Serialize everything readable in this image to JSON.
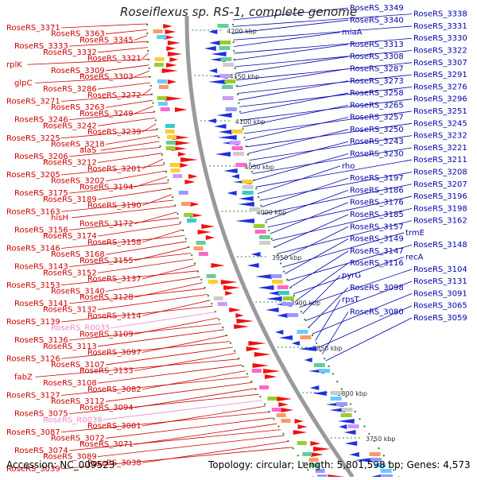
{
  "title": "Roseiflexus sp. RS-1, complete genome",
  "footer": {
    "accession": "Accession: NC_009523",
    "summary": "Topology: circular; Length: 5,801,598 bp; Genes: 4,573"
  },
  "colors": {
    "left_label": "#cc0000",
    "right_label": "#0000aa",
    "rna_label": "#ee88cc",
    "forward_strand": "#ee1111",
    "reverse_strand": "#1f2fe0",
    "backbone": "#9a9a9a",
    "tick": "#228822"
  },
  "scale_ticks": [
    "4200 kbp",
    "4150 kbp",
    "4100 kbp",
    "4050 kbp",
    "4000 kbp",
    "3950 kbp",
    "3900 kbp",
    "3850 kbp",
    "3800 kbp",
    "3750 kbp"
  ],
  "left_labels": [
    {
      "text": "RoseRS_3371",
      "kind": "gene"
    },
    {
      "text": "RoseRS_3363",
      "kind": "gene"
    },
    {
      "text": "RoseRS_3345",
      "kind": "gene"
    },
    {
      "text": "RoseRS_3333",
      "kind": "gene"
    },
    {
      "text": "RoseRS_3332",
      "kind": "gene"
    },
    {
      "text": "RoseRS_3321",
      "kind": "gene"
    },
    {
      "text": "rplK",
      "kind": "gene"
    },
    {
      "text": "RoseRS_3309",
      "kind": "gene"
    },
    {
      "text": "RoseRS_3303",
      "kind": "gene"
    },
    {
      "text": "glpC",
      "kind": "gene"
    },
    {
      "text": "RoseRS_3286",
      "kind": "gene"
    },
    {
      "text": "RoseRS_3272",
      "kind": "gene"
    },
    {
      "text": "RoseRS_3271",
      "kind": "gene"
    },
    {
      "text": "RoseRS_3263",
      "kind": "gene"
    },
    {
      "text": "RoseRS_3249",
      "kind": "gene"
    },
    {
      "text": "RoseRS_3246",
      "kind": "gene"
    },
    {
      "text": "RoseRS_3242",
      "kind": "gene"
    },
    {
      "text": "RoseRS_3239",
      "kind": "gene"
    },
    {
      "text": "RoseRS_3225",
      "kind": "gene"
    },
    {
      "text": "RoseRS_3218",
      "kind": "gene"
    },
    {
      "text": "alaS",
      "kind": "gene"
    },
    {
      "text": "RoseRS_3206",
      "kind": "gene"
    },
    {
      "text": "RoseRS_3212",
      "kind": "gene"
    },
    {
      "text": "RoseRS_3201",
      "kind": "gene"
    },
    {
      "text": "RoseRS_3205",
      "kind": "gene"
    },
    {
      "text": "RoseRS_3202",
      "kind": "gene"
    },
    {
      "text": "RoseRS_3194",
      "kind": "gene"
    },
    {
      "text": "RoseRS_3175",
      "kind": "gene"
    },
    {
      "text": "RoseRS_3189",
      "kind": "gene"
    },
    {
      "text": "RoseRS_3190",
      "kind": "gene"
    },
    {
      "text": "RoseRS_3163",
      "kind": "gene"
    },
    {
      "text": "hisH",
      "kind": "gene"
    },
    {
      "text": "RoseRS_3172",
      "kind": "gene"
    },
    {
      "text": "RoseRS_3156",
      "kind": "gene"
    },
    {
      "text": "RoseRS_3174",
      "kind": "gene"
    },
    {
      "text": "RoseRS_3158",
      "kind": "gene"
    },
    {
      "text": "RoseRS_3146",
      "kind": "gene"
    },
    {
      "text": "RoseRS_3168",
      "kind": "gene"
    },
    {
      "text": "RoseRS_3155",
      "kind": "gene"
    },
    {
      "text": "RoseRS_3143",
      "kind": "gene"
    },
    {
      "text": "RoseRS_3152",
      "kind": "gene"
    },
    {
      "text": "RoseRS_3137",
      "kind": "gene"
    },
    {
      "text": "RoseRS_3153",
      "kind": "gene"
    },
    {
      "text": "RoseRS_3140",
      "kind": "gene"
    },
    {
      "text": "RoseRS_3128",
      "kind": "gene"
    },
    {
      "text": "RoseRS_3141",
      "kind": "gene"
    },
    {
      "text": "RoseRS_3132",
      "kind": "gene"
    },
    {
      "text": "RoseRS_3114",
      "kind": "gene"
    },
    {
      "text": "RoseRS_3139",
      "kind": "gene"
    },
    {
      "text": "RoseRS_R0035",
      "kind": "rna"
    },
    {
      "text": "RoseRS_3109",
      "kind": "gene"
    },
    {
      "text": "RoseRS_3136",
      "kind": "gene"
    },
    {
      "text": "RoseRS_3113",
      "kind": "gene"
    },
    {
      "text": "RoseRS_3097",
      "kind": "gene"
    },
    {
      "text": "RoseRS_3126",
      "kind": "gene"
    },
    {
      "text": "RoseRS_3107",
      "kind": "gene"
    },
    {
      "text": "RoseRS_3133",
      "kind": "gene"
    },
    {
      "text": "fabZ",
      "kind": "gene"
    },
    {
      "text": "RoseRS_3108",
      "kind": "gene"
    },
    {
      "text": "RoseRS_3082",
      "kind": "gene"
    },
    {
      "text": "RoseRS_3127",
      "kind": "gene"
    },
    {
      "text": "RoseRS_3112",
      "kind": "gene"
    },
    {
      "text": "RoseRS_3094",
      "kind": "gene"
    },
    {
      "text": "RoseRS_3075",
      "kind": "gene"
    },
    {
      "text": "RoseRS_R0038",
      "kind": "rna"
    },
    {
      "text": "RoseRS_3081",
      "kind": "gene"
    },
    {
      "text": "RoseRS_3087",
      "kind": "gene"
    },
    {
      "text": "RoseRS_3072",
      "kind": "gene"
    },
    {
      "text": "RoseRS_3071",
      "kind": "gene"
    },
    {
      "text": "RoseRS_3074",
      "kind": "gene"
    },
    {
      "text": "RoseRS_3089",
      "kind": "gene"
    },
    {
      "text": "RoseRS_3038",
      "kind": "gene"
    },
    {
      "text": "RoseRS_3039",
      "kind": "gene"
    }
  ],
  "right_labels": [
    {
      "text": "RoseRS_3349"
    },
    {
      "text": "RoseRS_3338"
    },
    {
      "text": "RoseRS_3340"
    },
    {
      "text": "RoseRS_3331"
    },
    {
      "text": "miaA"
    },
    {
      "text": "RoseRS_3330"
    },
    {
      "text": "RoseRS_3313"
    },
    {
      "text": "RoseRS_3322"
    },
    {
      "text": "RoseRS_3308"
    },
    {
      "text": "RoseRS_3307"
    },
    {
      "text": "RoseRS_3287"
    },
    {
      "text": "RoseRS_3291"
    },
    {
      "text": "RoseRS_3273"
    },
    {
      "text": "RoseRS_3276"
    },
    {
      "text": "RoseRS_3258"
    },
    {
      "text": "RoseRS_3296"
    },
    {
      "text": "RoseRS_3265"
    },
    {
      "text": "RoseRS_3251"
    },
    {
      "text": "RoseRS_3257"
    },
    {
      "text": "RoseRS_3245"
    },
    {
      "text": "RoseRS_3250"
    },
    {
      "text": "RoseRS_3232"
    },
    {
      "text": "RoseRS_3243"
    },
    {
      "text": "RoseRS_3221"
    },
    {
      "text": "RoseRS_3230"
    },
    {
      "text": "RoseRS_3211"
    },
    {
      "text": "rho"
    },
    {
      "text": "RoseRS_3208"
    },
    {
      "text": "RoseRS_3197"
    },
    {
      "text": "RoseRS_3207"
    },
    {
      "text": "RoseRS_3186"
    },
    {
      "text": "RoseRS_3196"
    },
    {
      "text": "RoseRS_3176"
    },
    {
      "text": "RoseRS_3198"
    },
    {
      "text": "RoseRS_3185"
    },
    {
      "text": "RoseRS_3162"
    },
    {
      "text": "RoseRS_3157"
    },
    {
      "text": "trmE"
    },
    {
      "text": "RoseRS_3149"
    },
    {
      "text": "RoseRS_3148"
    },
    {
      "text": "RoseRS_3147"
    },
    {
      "text": "recA"
    },
    {
      "text": "RoseRS_3116"
    },
    {
      "text": "RoseRS_3104"
    },
    {
      "text": "pyrG"
    },
    {
      "text": "RoseRS_3131"
    },
    {
      "text": "RoseRS_3098"
    },
    {
      "text": "RoseRS_3091"
    },
    {
      "text": "rpsT"
    },
    {
      "text": "RoseRS_3065"
    },
    {
      "text": "RoseRS_3080"
    },
    {
      "text": "RoseRS_3059"
    }
  ]
}
